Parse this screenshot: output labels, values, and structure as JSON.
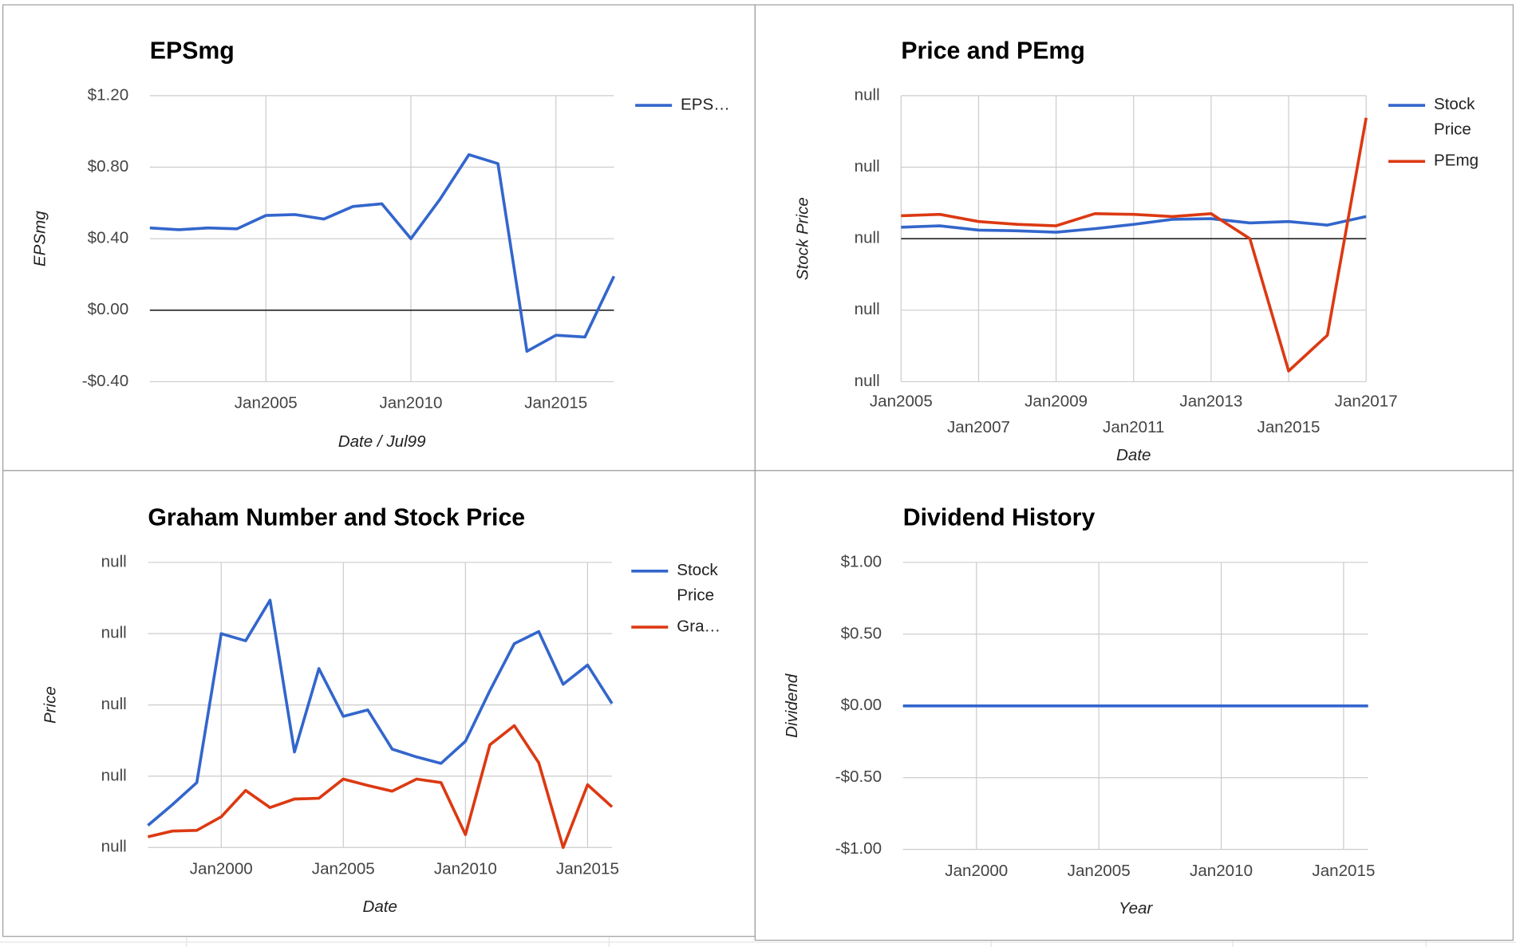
{
  "chart_data": [
    {
      "type": "line",
      "title": "EPSmg",
      "x_label": "Date / Jul99",
      "y_label": "EPSmg",
      "x": [
        2001,
        2002,
        2003,
        2004,
        2005,
        2006,
        2007,
        2008,
        2009,
        2010,
        2011,
        2012,
        2013,
        2014,
        2015,
        2016,
        2017
      ],
      "series": [
        {
          "name": "EPS…",
          "color": "#3366cc",
          "values": [
            0.46,
            0.45,
            0.46,
            0.455,
            0.53,
            0.535,
            0.51,
            0.58,
            0.595,
            0.4,
            0.62,
            0.87,
            0.82,
            -0.23,
            -0.14,
            -0.15,
            0.19
          ]
        }
      ],
      "xlim": [
        2001,
        2017
      ],
      "xticks": [
        {
          "value": 2005,
          "label": "Jan2005"
        },
        {
          "value": 2010,
          "label": "Jan2010"
        },
        {
          "value": 2015,
          "label": "Jan2015"
        }
      ],
      "ylim": [
        -0.4,
        1.2
      ],
      "yticks": [
        {
          "value": -0.4,
          "label": "-$0.40"
        },
        {
          "value": 0,
          "label": "$0.00"
        },
        {
          "value": 0.4,
          "label": "$0.40"
        },
        {
          "value": 0.8,
          "label": "$0.80"
        },
        {
          "value": 1.2,
          "label": "$1.20"
        }
      ],
      "grid": true,
      "legend": "right"
    },
    {
      "type": "line",
      "title": "Price and PEmg",
      "x_label": "Date",
      "y_label": "Stock Price",
      "x": [
        2005,
        2006,
        2007,
        2008,
        2009,
        2010,
        2011,
        2012,
        2013,
        2014,
        2015,
        2016,
        2017
      ],
      "series": [
        {
          "name": "Stock Price",
          "color": "#3366cc",
          "values": [
            0.16,
            0.18,
            0.12,
            0.11,
            0.09,
            0.14,
            0.2,
            0.27,
            0.28,
            0.22,
            0.24,
            0.19,
            0.31
          ]
        },
        {
          "name": "PEmg",
          "color": "#dc3912",
          "values": [
            0.32,
            0.34,
            0.24,
            0.2,
            0.18,
            0.35,
            0.34,
            0.31,
            0.35,
            0.0,
            -1.85,
            -1.35,
            1.69
          ]
        }
      ],
      "xlim": [
        2005,
        2017
      ],
      "xticks": [
        {
          "value": 2005,
          "label": "Jan2005"
        },
        {
          "value": 2007,
          "label": "Jan2007"
        },
        {
          "value": 2009,
          "label": "Jan2009"
        },
        {
          "value": 2011,
          "label": "Jan2011"
        },
        {
          "value": 2013,
          "label": "Jan2013"
        },
        {
          "value": 2015,
          "label": "Jan2015"
        },
        {
          "value": 2017,
          "label": "Jan2017"
        }
      ],
      "ylim": [
        -2,
        2
      ],
      "yticks": [
        {
          "value": -2,
          "label": "null"
        },
        {
          "value": -1,
          "label": "null"
        },
        {
          "value": 0,
          "label": "null"
        },
        {
          "value": 1,
          "label": "null"
        },
        {
          "value": 2,
          "label": "null"
        }
      ],
      "grid": true,
      "legend": "right"
    },
    {
      "type": "line",
      "title": "Graham Number and Stock Price",
      "x_label": "Date",
      "y_label": "Price",
      "x": [
        1997,
        1998,
        1999,
        2000,
        2001,
        2002,
        2003,
        2004,
        2005,
        2006,
        2007,
        2008,
        2009,
        2010,
        2011,
        2012,
        2013,
        2014,
        2015,
        2016
      ],
      "series": [
        {
          "name": "Stock Price",
          "color": "#3366cc",
          "values": [
            0.31,
            0.6,
            0.91,
            3.0,
            2.9,
            3.47,
            1.34,
            2.51,
            1.84,
            1.93,
            1.38,
            1.27,
            1.18,
            1.49,
            2.2,
            2.86,
            3.03,
            2.29,
            2.56,
            2.02
          ]
        },
        {
          "name": "Gra…",
          "color": "#dc3912",
          "values": [
            0.15,
            0.23,
            0.24,
            0.43,
            0.8,
            0.56,
            0.68,
            0.69,
            0.96,
            0.87,
            0.79,
            0.96,
            0.91,
            0.18,
            1.44,
            1.71,
            1.19,
            0,
            0.88,
            0.57
          ]
        }
      ],
      "xlim": [
        1997,
        2016
      ],
      "xticks": [
        {
          "value": 2000,
          "label": "Jan2000"
        },
        {
          "value": 2005,
          "label": "Jan2005"
        },
        {
          "value": 2010,
          "label": "Jan2010"
        },
        {
          "value": 2015,
          "label": "Jan2015"
        }
      ],
      "ylim": [
        0,
        4
      ],
      "yticks": [
        {
          "value": 0,
          "label": "null"
        },
        {
          "value": 1,
          "label": "null"
        },
        {
          "value": 2,
          "label": "null"
        },
        {
          "value": 3,
          "label": "null"
        },
        {
          "value": 4,
          "label": "null"
        }
      ],
      "grid": true,
      "legend": "right"
    },
    {
      "type": "line",
      "title": "Dividend History",
      "x_label": "Year",
      "y_label": "Dividend",
      "x": [
        1997,
        1998,
        1999,
        2000,
        2001,
        2002,
        2003,
        2004,
        2005,
        2006,
        2007,
        2008,
        2009,
        2010,
        2011,
        2012,
        2013,
        2014,
        2015,
        2016
      ],
      "series": [
        {
          "color": "#3366cc",
          "values": [
            0,
            0,
            0,
            0,
            0,
            0,
            0,
            0,
            0,
            0,
            0,
            0,
            0,
            0,
            0,
            0,
            0,
            0,
            0,
            0
          ]
        }
      ],
      "xlim": [
        1997,
        2016
      ],
      "xticks": [
        {
          "value": 2000,
          "label": "Jan2000"
        },
        {
          "value": 2005,
          "label": "Jan2005"
        },
        {
          "value": 2010,
          "label": "Jan2010"
        },
        {
          "value": 2015,
          "label": "Jan2015"
        }
      ],
      "ylim": [
        -1,
        1
      ],
      "yticks": [
        {
          "value": -1,
          "label": "-$1.00"
        },
        {
          "value": -0.5,
          "label": "-$0.50"
        },
        {
          "value": 0,
          "label": "$0.00"
        },
        {
          "value": 0.5,
          "label": "$0.50"
        },
        {
          "value": 1,
          "label": "$1.00"
        }
      ],
      "grid": true,
      "legend": "none"
    }
  ]
}
